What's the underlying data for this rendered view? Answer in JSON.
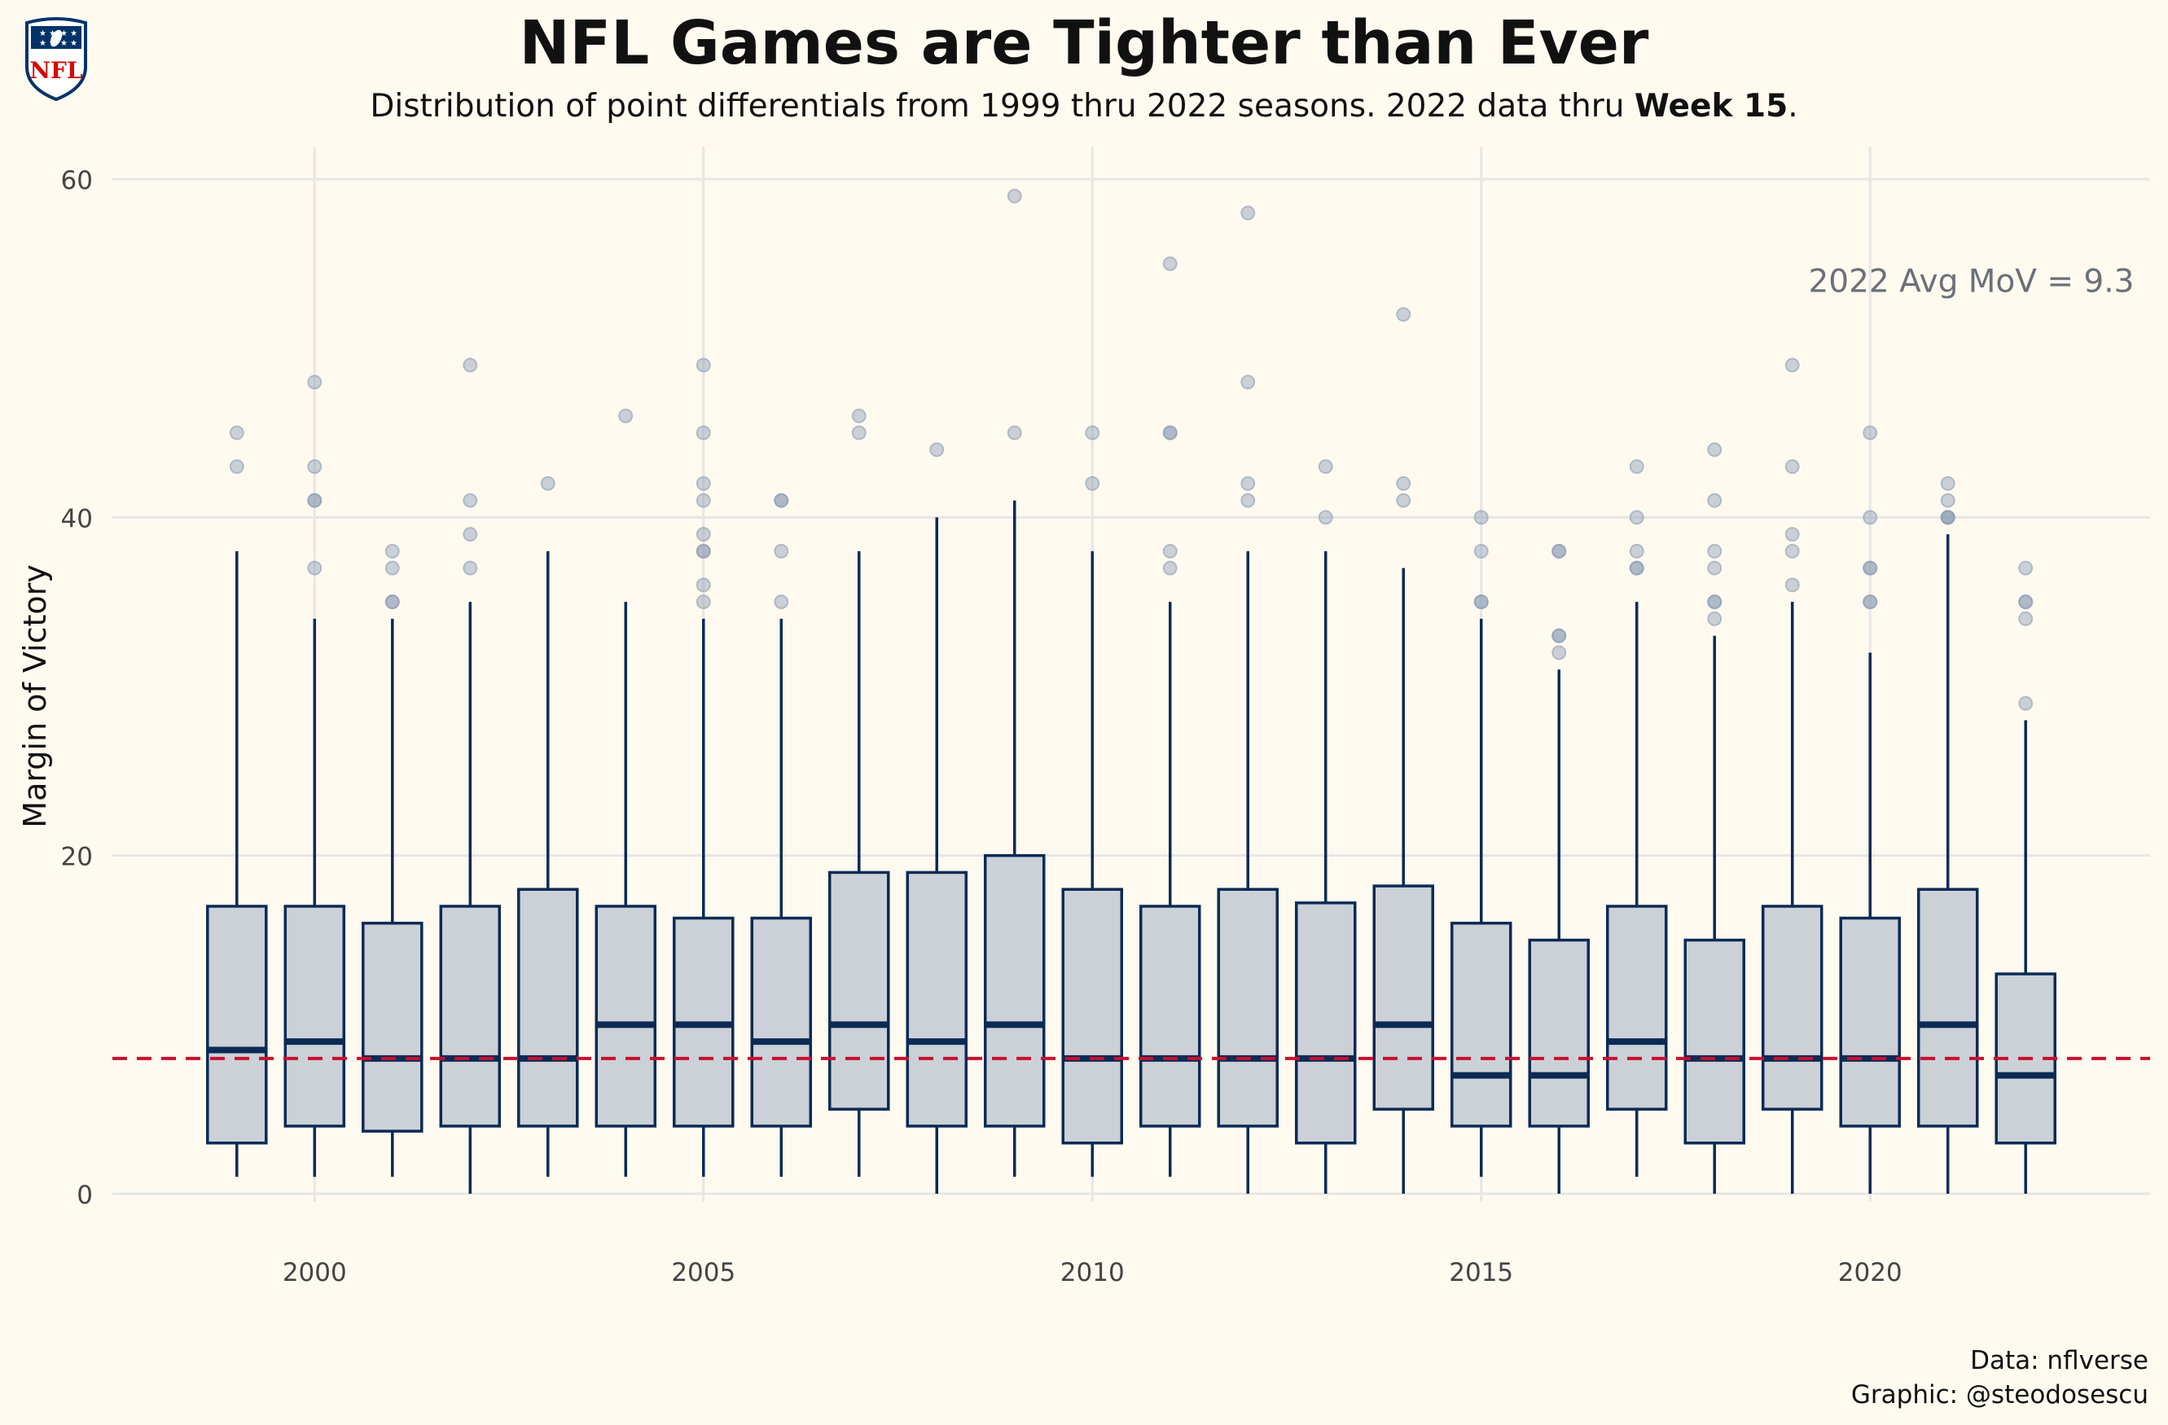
{
  "header": {
    "title": "NFL Games are Tighter than Ever",
    "subtitle_pre": "Distribution of point differentials from 1999 thru 2022 seasons. 2022 data thru ",
    "subtitle_bold": "Week 15",
    "subtitle_post": ".",
    "logo_text": "NFL"
  },
  "caption": {
    "line1": "Data: nflverse",
    "line2": "Graphic: @steodosescu"
  },
  "colors": {
    "background": "#fefaf0",
    "box_fill": "#ccd1d7",
    "box_stroke": "#0b2a55",
    "outlier": "#8e9db5",
    "reference_line": "#c8102e",
    "grid": "#e6e6e6",
    "annotation": "#6b7077"
  },
  "chart_data": {
    "type": "boxplot",
    "title": "NFL Games are Tighter than Ever",
    "xlabel": "",
    "ylabel": "Margin of Victory",
    "xlim": [
      1997.4,
      2023.6
    ],
    "ylim": [
      0,
      60
    ],
    "x_ticks": [
      2000,
      2005,
      2010,
      2015,
      2020
    ],
    "y_ticks": [
      0,
      20,
      40,
      60
    ],
    "grid": true,
    "reference_line": {
      "y": 8,
      "style": "dashed"
    },
    "annotation": {
      "text": "2022 Avg MoV = 9.3",
      "x": 2023.5,
      "y": 54
    },
    "boxes": [
      {
        "season": 1999,
        "whisker_low": 1,
        "q1": 3,
        "median": 8.5,
        "q3": 17,
        "whisker_high": 38,
        "outliers": [
          43,
          45
        ]
      },
      {
        "season": 2000,
        "whisker_low": 1,
        "q1": 4,
        "median": 9,
        "q3": 17,
        "whisker_high": 34,
        "outliers": [
          37,
          41,
          41,
          43,
          48
        ]
      },
      {
        "season": 2001,
        "whisker_low": 1,
        "q1": 3.7,
        "median": 8,
        "q3": 16,
        "whisker_high": 34,
        "outliers": [
          35,
          35,
          37,
          38
        ]
      },
      {
        "season": 2002,
        "whisker_low": 0,
        "q1": 4,
        "median": 8,
        "q3": 17,
        "whisker_high": 35,
        "outliers": [
          37,
          39,
          41,
          49
        ]
      },
      {
        "season": 2003,
        "whisker_low": 1,
        "q1": 4,
        "median": 8,
        "q3": 18,
        "whisker_high": 38,
        "outliers": [
          42
        ]
      },
      {
        "season": 2004,
        "whisker_low": 1,
        "q1": 4,
        "median": 10,
        "q3": 17,
        "whisker_high": 35,
        "outliers": [
          46
        ]
      },
      {
        "season": 2005,
        "whisker_low": 1,
        "q1": 4,
        "median": 10,
        "q3": 16.3,
        "whisker_high": 34,
        "outliers": [
          35,
          36,
          38,
          38,
          39,
          41,
          42,
          45,
          49
        ]
      },
      {
        "season": 2006,
        "whisker_low": 1,
        "q1": 4,
        "median": 9,
        "q3": 16.3,
        "whisker_high": 34,
        "outliers": [
          35,
          38,
          41,
          41
        ]
      },
      {
        "season": 2007,
        "whisker_low": 1,
        "q1": 5,
        "median": 10,
        "q3": 19,
        "whisker_high": 38,
        "outliers": [
          45,
          46
        ]
      },
      {
        "season": 2008,
        "whisker_low": 0,
        "q1": 4,
        "median": 9,
        "q3": 19,
        "whisker_high": 40,
        "outliers": [
          44
        ]
      },
      {
        "season": 2009,
        "whisker_low": 1,
        "q1": 4,
        "median": 10,
        "q3": 20,
        "whisker_high": 41,
        "outliers": [
          45,
          59
        ]
      },
      {
        "season": 2010,
        "whisker_low": 1,
        "q1": 3,
        "median": 8,
        "q3": 18,
        "whisker_high": 38,
        "outliers": [
          42,
          45
        ]
      },
      {
        "season": 2011,
        "whisker_low": 1,
        "q1": 4,
        "median": 8,
        "q3": 17,
        "whisker_high": 35,
        "outliers": [
          37,
          38,
          45,
          45,
          55
        ]
      },
      {
        "season": 2012,
        "whisker_low": 0,
        "q1": 4,
        "median": 8,
        "q3": 18,
        "whisker_high": 38,
        "outliers": [
          41,
          42,
          48,
          58
        ]
      },
      {
        "season": 2013,
        "whisker_low": 0,
        "q1": 3,
        "median": 8,
        "q3": 17.2,
        "whisker_high": 38,
        "outliers": [
          40,
          43
        ]
      },
      {
        "season": 2014,
        "whisker_low": 0,
        "q1": 5,
        "median": 10,
        "q3": 18.2,
        "whisker_high": 37,
        "outliers": [
          41,
          42,
          52
        ]
      },
      {
        "season": 2015,
        "whisker_low": 1,
        "q1": 4,
        "median": 7,
        "q3": 16,
        "whisker_high": 34,
        "outliers": [
          35,
          35,
          38,
          40
        ]
      },
      {
        "season": 2016,
        "whisker_low": 0,
        "q1": 4,
        "median": 7,
        "q3": 15,
        "whisker_high": 31,
        "outliers": [
          32,
          33,
          33,
          38,
          38
        ]
      },
      {
        "season": 2017,
        "whisker_low": 1,
        "q1": 5,
        "median": 9,
        "q3": 17,
        "whisker_high": 35,
        "outliers": [
          37,
          37,
          38,
          40,
          43
        ]
      },
      {
        "season": 2018,
        "whisker_low": 0,
        "q1": 3,
        "median": 8,
        "q3": 15,
        "whisker_high": 33,
        "outliers": [
          34,
          35,
          35,
          37,
          38,
          41,
          44
        ]
      },
      {
        "season": 2019,
        "whisker_low": 0,
        "q1": 5,
        "median": 8,
        "q3": 17,
        "whisker_high": 35,
        "outliers": [
          36,
          38,
          39,
          43,
          49
        ]
      },
      {
        "season": 2020,
        "whisker_low": 0,
        "q1": 4,
        "median": 8,
        "q3": 16.3,
        "whisker_high": 32,
        "outliers": [
          35,
          35,
          37,
          37,
          40,
          45
        ]
      },
      {
        "season": 2021,
        "whisker_low": 0,
        "q1": 4,
        "median": 10,
        "q3": 18,
        "whisker_high": 39,
        "outliers": [
          40,
          40,
          40,
          41,
          42
        ]
      },
      {
        "season": 2022,
        "whisker_low": 0,
        "q1": 3,
        "median": 7,
        "q3": 13,
        "whisker_high": 28,
        "outliers": [
          29,
          34,
          35,
          35,
          37
        ]
      }
    ]
  }
}
